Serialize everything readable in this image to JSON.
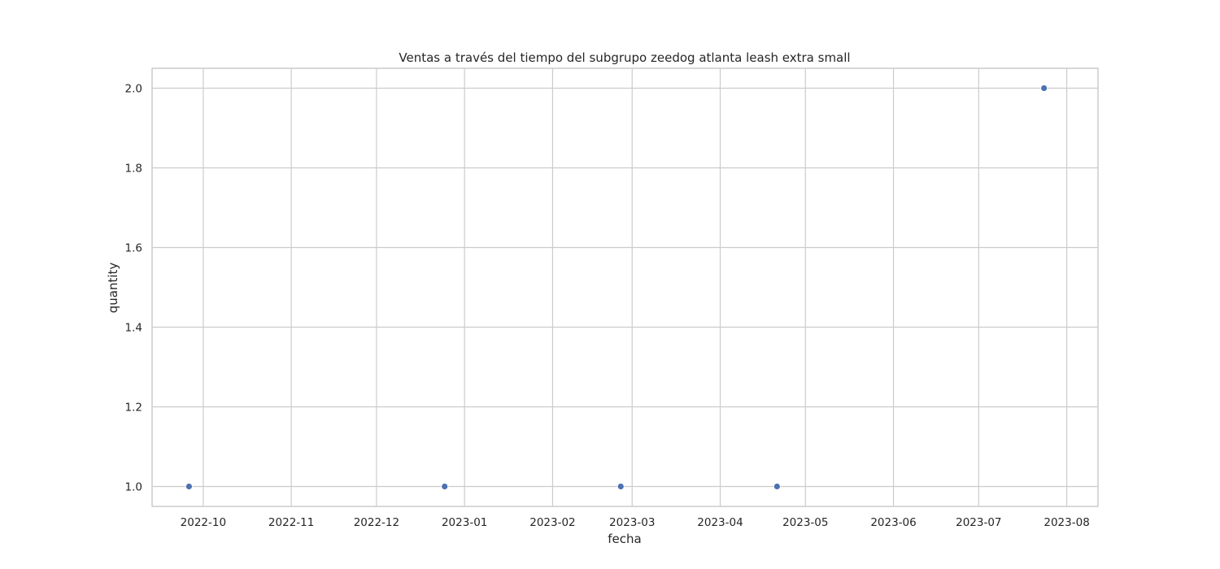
{
  "chart_data": {
    "type": "scatter",
    "title": "Ventas a través del tiempo del subgrupo zeedog atlanta leash extra small",
    "xlabel": "fecha",
    "ylabel": "quantity",
    "x_is_date": true,
    "xlim": [
      "2022-09-13",
      "2023-08-12"
    ],
    "ylim": [
      0.95,
      2.05
    ],
    "x_ticks": [
      "2022-10-01",
      "2022-11-01",
      "2022-12-01",
      "2023-01-01",
      "2023-02-01",
      "2023-03-01",
      "2023-04-01",
      "2023-05-01",
      "2023-06-01",
      "2023-07-01",
      "2023-08-01"
    ],
    "x_tick_labels": [
      "2022-10",
      "2022-11",
      "2022-12",
      "2023-01",
      "2023-02",
      "2023-03",
      "2023-04",
      "2023-05",
      "2023-06",
      "2023-07",
      "2023-08"
    ],
    "y_ticks": [
      1.0,
      1.2,
      1.4,
      1.6,
      1.8,
      2.0
    ],
    "y_tick_labels": [
      "1.0",
      "1.2",
      "1.4",
      "1.6",
      "1.8",
      "2.0"
    ],
    "grid": true,
    "color": "#4c72b0",
    "points": [
      {
        "x": "2022-09-26",
        "y": 1
      },
      {
        "x": "2022-12-25",
        "y": 1
      },
      {
        "x": "2023-02-25",
        "y": 1
      },
      {
        "x": "2023-04-21",
        "y": 1
      },
      {
        "x": "2023-07-24",
        "y": 2
      }
    ]
  }
}
